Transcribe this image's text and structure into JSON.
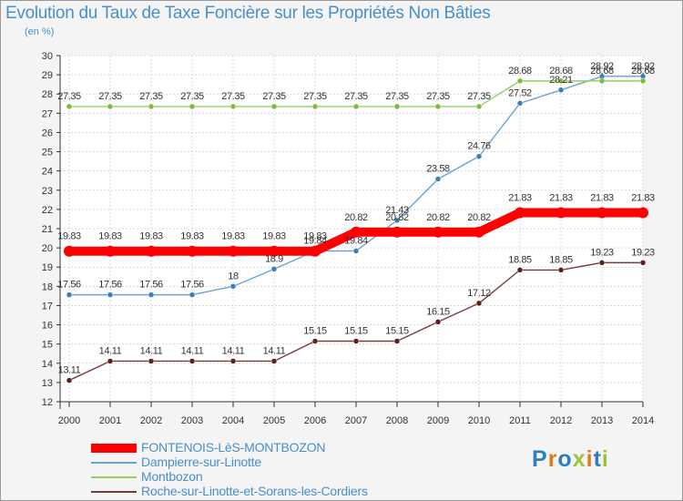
{
  "title": "Evolution du Taux de Taxe Foncière sur les Propriétés Non Bâties",
  "subtitle": "(en %)",
  "logo": {
    "text": "Proxiti",
    "colors": [
      "#2a7fc0",
      "#e07a1e",
      "#2a7fc0",
      "#9ac43a",
      "#e07a1e",
      "#2a7fc0",
      "#9ac43a"
    ]
  },
  "chart_data": {
    "type": "line",
    "x": [
      2000,
      2001,
      2002,
      2003,
      2004,
      2005,
      2006,
      2007,
      2008,
      2009,
      2010,
      2011,
      2012,
      2013,
      2014
    ],
    "ylim": [
      12,
      30
    ],
    "yticks": [
      12,
      13,
      14,
      15,
      16,
      17,
      18,
      19,
      20,
      21,
      22,
      23,
      24,
      25,
      26,
      27,
      28,
      29,
      30
    ],
    "grid": true,
    "legend_position": "bottom-left",
    "series": [
      {
        "name": "FONTENOIS-LèS-MONTBOZON",
        "color": "#ff0000",
        "marker": "#ff0000",
        "width": 10,
        "values": [
          19.83,
          19.83,
          19.83,
          19.83,
          19.83,
          19.83,
          19.83,
          20.82,
          20.82,
          20.82,
          20.82,
          21.83,
          21.83,
          21.83,
          21.83
        ],
        "labels": [
          "19.83",
          "19.83",
          "19.83",
          "19.83",
          "19.83",
          "19.83",
          "19.83",
          "20.82",
          "20.82",
          "20.82",
          "20.82",
          "21.83",
          "21.83",
          "21.83",
          "21.83"
        ]
      },
      {
        "name": "Dampierre-sur-Linotte",
        "color": "#6aa2d3",
        "marker": "#3c7fbe",
        "width": 1.4,
        "values": [
          17.56,
          17.56,
          17.56,
          17.56,
          18,
          18.9,
          19.84,
          19.84,
          21.43,
          23.58,
          24.76,
          27.52,
          28.21,
          28.92,
          28.92
        ],
        "labels": [
          "17.56",
          "17.56",
          "17.56",
          "17.56",
          "18",
          "18.9",
          "19.84",
          "19.84",
          "21.43",
          "23.58",
          "24.76",
          "27.52",
          "28.21",
          "28.92",
          "28.92"
        ]
      },
      {
        "name": "Montbozon",
        "color": "#96cf60",
        "marker": "#7bbd3a",
        "width": 1.4,
        "values": [
          27.35,
          27.35,
          27.35,
          27.35,
          27.35,
          27.35,
          27.35,
          27.35,
          27.35,
          27.35,
          27.35,
          28.68,
          28.68,
          28.68,
          28.68
        ],
        "labels": [
          "27.35",
          "27.35",
          "27.35",
          "27.35",
          "27.35",
          "27.35",
          "27.35",
          "27.35",
          "27.35",
          "27.35",
          "27.35",
          "28.68",
          "28.68",
          "28.68",
          "28.68"
        ]
      },
      {
        "name": "Roche-sur-Linotte-et-Sorans-les-Cordiers",
        "color": "#7a3a3a",
        "marker": "#5e1f1f",
        "width": 1.4,
        "values": [
          13.11,
          14.11,
          14.11,
          14.11,
          14.11,
          14.11,
          15.15,
          15.15,
          15.15,
          16.15,
          17.12,
          18.85,
          18.85,
          19.23,
          19.23
        ],
        "labels": [
          "13.11",
          "14.11",
          "14.11",
          "14.11",
          "14.11",
          "14.11",
          "15.15",
          "15.15",
          "15.15",
          "16.15",
          "17.12",
          "18.85",
          "18.85",
          "19.23",
          "19.23"
        ]
      }
    ]
  }
}
